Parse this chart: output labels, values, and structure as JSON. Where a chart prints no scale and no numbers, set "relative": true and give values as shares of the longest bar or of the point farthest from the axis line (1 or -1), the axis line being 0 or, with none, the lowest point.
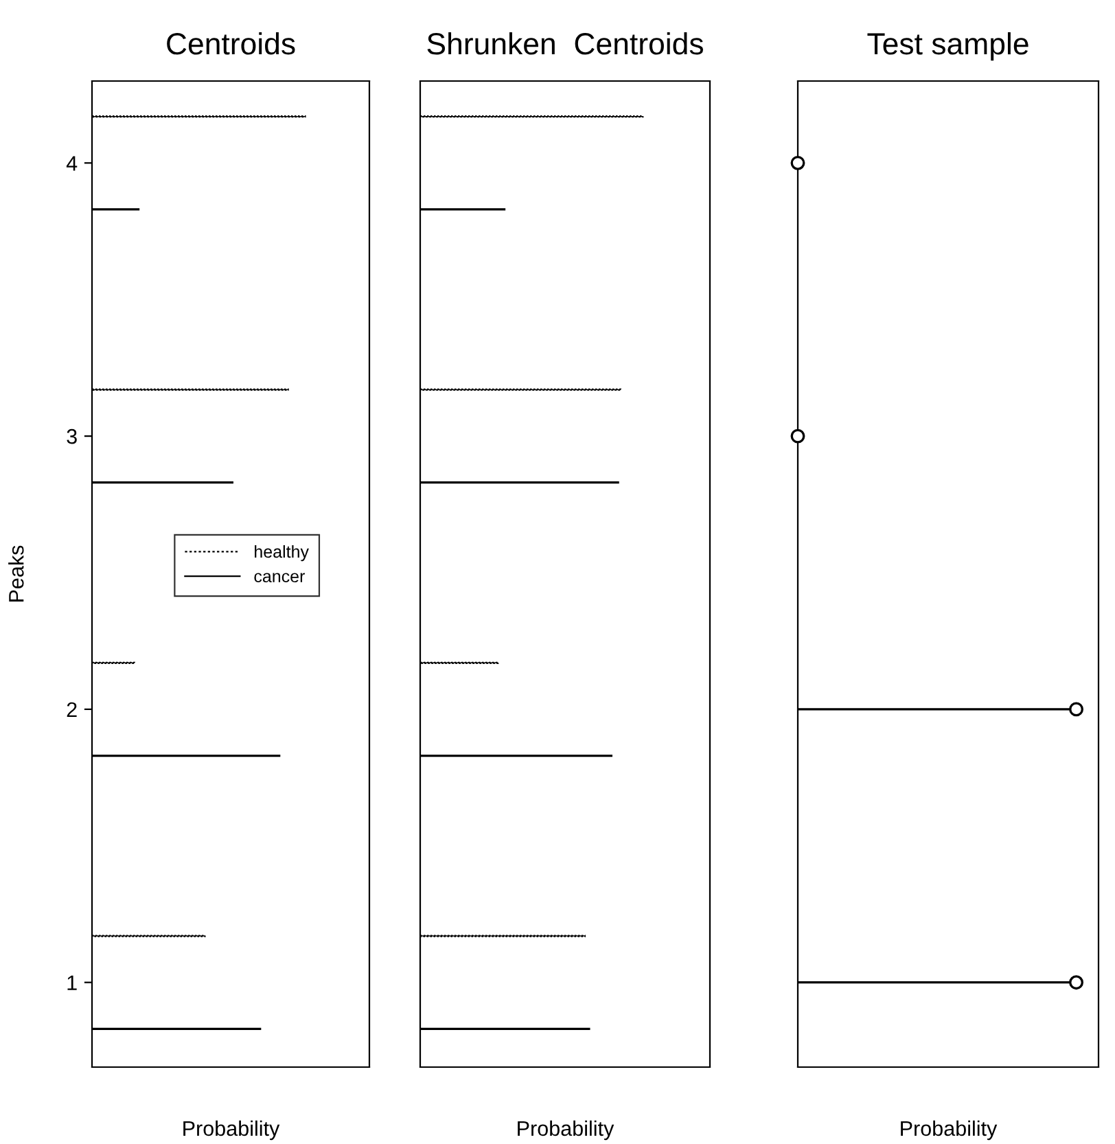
{
  "chart_data": [
    {
      "type": "bar",
      "orientation": "horizontal",
      "relative": true,
      "title": "Centroids",
      "xlabel": "Probability",
      "ylabel": "Peaks",
      "categories": [
        "4",
        "3",
        "2",
        "1"
      ],
      "tick_labels": "y",
      "legend": "right",
      "series": [
        {
          "name": "healthy",
          "color": "#000000",
          "line_style": "dotted",
          "values": [
            1.0,
            0.92,
            0.2,
            0.53
          ]
        },
        {
          "name": "cancer",
          "color": "#000000",
          "line_style": "solid",
          "values": [
            0.22,
            0.66,
            0.88,
            0.79
          ]
        }
      ]
    },
    {
      "type": "bar",
      "orientation": "horizontal",
      "relative": true,
      "title": "Shrunken  Centroids",
      "xlabel": "Probability",
      "categories": [
        "4",
        "3",
        "2",
        "1"
      ],
      "tick_labels": false,
      "series": [
        {
          "color": "#000000",
          "line_style": "dotted",
          "values": [
            1.0,
            0.9,
            0.35,
            0.74
          ]
        },
        {
          "color": "#000000",
          "line_style": "solid",
          "values": [
            0.38,
            0.89,
            0.86,
            0.76
          ]
        }
      ]
    },
    {
      "type": "lollipop",
      "orientation": "horizontal",
      "relative": true,
      "title": "Test sample",
      "xlabel": "Probability",
      "categories": [
        "4",
        "3",
        "2",
        "1"
      ],
      "tick_labels": false,
      "marker": "circle",
      "series": [
        {
          "color": "#000000",
          "line_style": "solid",
          "values": [
            0,
            0,
            1,
            1
          ]
        }
      ]
    }
  ]
}
